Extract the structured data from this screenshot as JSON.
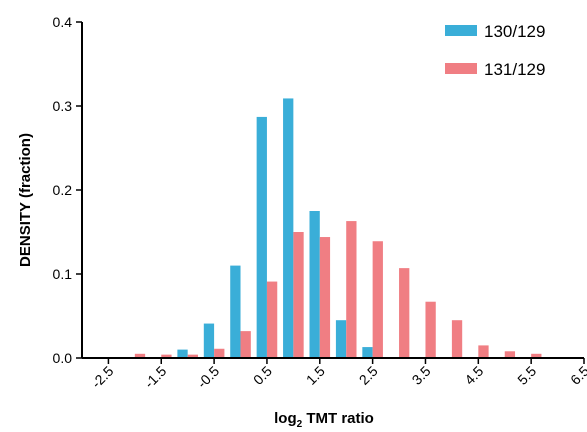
{
  "chart_data": {
    "type": "bar",
    "title": "",
    "xlabel": "log",
    "xlabel_subscript": "2",
    "xlabel_rest": " TMT ratio",
    "ylabel": "DENSITY (fraction)",
    "ylim": [
      0,
      0.4
    ],
    "yticks": [
      "0.0",
      "0.1",
      "0.2",
      "0.3",
      "0.4"
    ],
    "xlim": [
      -3,
      6.5
    ],
    "xticks": [
      "-2.5",
      "-1.5",
      "-0.5",
      "0.5",
      "1.5",
      "2.5",
      "3.5",
      "4.5",
      "5.5",
      "6.5"
    ],
    "bin_width": 0.5,
    "legend_position": "top-right",
    "grid": false,
    "series": [
      {
        "name": "130/129",
        "color": "#3aaed8",
        "x": [
          -1.0,
          -0.5,
          0.0,
          0.5,
          1.0,
          1.5,
          2.0,
          2.5
        ],
        "values": [
          0.01,
          0.041,
          0.11,
          0.287,
          0.309,
          0.175,
          0.045,
          0.013
        ]
      },
      {
        "name": "131/129",
        "color": "#f07e83",
        "x": [
          -2.0,
          -1.5,
          -1.0,
          -0.5,
          0.0,
          0.5,
          1.0,
          1.5,
          2.0,
          2.5,
          3.0,
          3.5,
          4.0,
          4.5,
          5.0,
          5.5
        ],
        "values": [
          0.005,
          0.004,
          0.004,
          0.011,
          0.032,
          0.091,
          0.15,
          0.144,
          0.163,
          0.139,
          0.107,
          0.067,
          0.045,
          0.015,
          0.008,
          0.005
        ]
      }
    ]
  }
}
